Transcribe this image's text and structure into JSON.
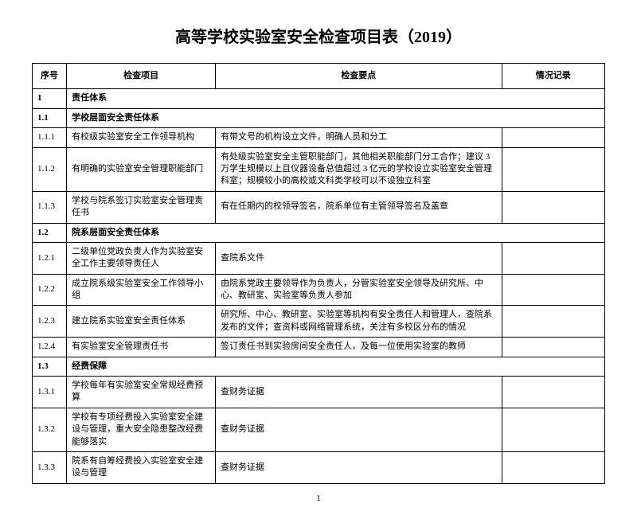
{
  "title": "高等学校实验室安全检查项目表（2019）",
  "headers": {
    "num": "序号",
    "item": "检查项目",
    "point": "检查要点",
    "record": "情况记录"
  },
  "rows": [
    {
      "num": "1",
      "item": "责任体系",
      "section": true
    },
    {
      "num": "1.1",
      "item": "学校层面安全责任体系",
      "section": true
    },
    {
      "num": "1.1.1",
      "item": "有校级实验室安全工作领导机构",
      "point": "有带文号的机构设立文件，明确人员和分工"
    },
    {
      "num": "1.1.2",
      "item": "有明确的实验室安全管理职能部门",
      "point": "有处级实验室安全主管职能部门，其他相关职能部门分工合作；建议 3 万学生规模以上且仪器设备总值超过 3 亿元的学校设立实验室安全管理科室；规模较小的高校或文科类学校可以不设独立科室"
    },
    {
      "num": "1.1.3",
      "item": "学校与院系签订实验室安全管理责任书",
      "point": "有在任期内的校领导签名，院系单位有主管领导签名及盖章"
    },
    {
      "num": "1.2",
      "item": "院系层面安全责任体系",
      "section": true
    },
    {
      "num": "1.2.1",
      "item": "二级单位党政负责人作为实验室安全工作主要领导责任人",
      "point": "查院系文件"
    },
    {
      "num": "1.2.2",
      "item": "成立院系级实验室安全工作领导小组",
      "point": "由院系党政主要领导作为负责人，分管实验室安全领导及研究所、中心、教研室、实验室等负责人参加"
    },
    {
      "num": "1.2.3",
      "item": "建立院系实验室安全责任体系",
      "point": "研究所、中心、教研室、实验室等机构有安全责任人和管理人，查院系发布的文件；查资料或网络管理系统，关注有多校区分布的情况"
    },
    {
      "num": "1.2.4",
      "item": "有实验室安全管理责任书",
      "point": "签订责任书到实验房间安全责任人，及每一位使用实验室的教师"
    },
    {
      "num": "1.3",
      "item": "经费保障",
      "section": true
    },
    {
      "num": "1.3.1",
      "item": "学校每年有实验室安全常规经费预算",
      "point": "查财务证据"
    },
    {
      "num": "1.3.2",
      "item": "学校有专项经费投入实验室安全建设与管理，重大安全隐患整改经费能够落实",
      "point": "查财务证据"
    },
    {
      "num": "1.3.3",
      "item": "院系有自筹经费投入实验室安全建设与管理",
      "point": "查财务证据"
    }
  ],
  "pageNumber": "1"
}
